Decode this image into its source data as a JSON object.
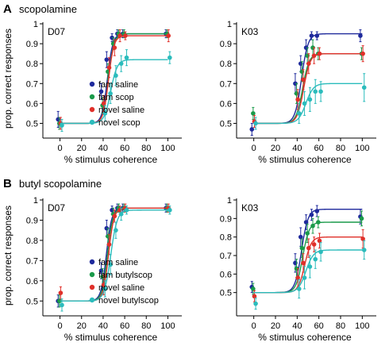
{
  "sections": [
    {
      "letter": "A",
      "label": "scopolamine"
    },
    {
      "letter": "B",
      "label": "butyl scopolamine"
    }
  ],
  "colors": {
    "fam_saline": "#1f2a9c",
    "fam_drug": "#1a9a4a",
    "novel_saline": "#e0302a",
    "novel_drug": "#2bbcbc"
  },
  "chart_data": [
    {
      "type": "scatter",
      "panel": "D07",
      "section": "A",
      "xlabel": "% stimulus coherence",
      "ylabel": "prop. correct responses",
      "xlim": [
        -10,
        110
      ],
      "ylim": [
        0.45,
        1.0
      ],
      "xticks": [
        "0",
        "20",
        "40",
        "60",
        "80",
        "100"
      ],
      "yticks": [
        "0.5",
        "0.6",
        "0.7",
        "0.8",
        "0.9",
        "1"
      ],
      "legend_position": "bottom-right",
      "series": [
        {
          "name": "fam saline",
          "color": "#1f2a9c",
          "mu": 44,
          "s": 2.5,
          "top": 0.95,
          "x": [
            0,
            40,
            45,
            50,
            55,
            60,
            100
          ],
          "y": [
            0.52,
            0.66,
            0.82,
            0.93,
            0.95,
            0.95,
            0.95
          ],
          "err": [
            0.04,
            0.04,
            0.04,
            0.02,
            0.02,
            0.02,
            0.02
          ]
        },
        {
          "name": "fam scop",
          "color": "#1a9a4a",
          "mu": 45,
          "s": 2.5,
          "top": 0.95,
          "x": [
            0,
            40,
            45,
            50,
            55,
            60,
            100
          ],
          "y": [
            0.5,
            0.59,
            0.76,
            0.9,
            0.95,
            0.95,
            0.95
          ],
          "err": [
            0.03,
            0.04,
            0.04,
            0.03,
            0.02,
            0.02,
            0.02
          ]
        },
        {
          "name": "novel saline",
          "color": "#e0302a",
          "mu": 45,
          "s": 2.5,
          "top": 0.94,
          "x": [
            0,
            40,
            45,
            50,
            55,
            60,
            100
          ],
          "y": [
            0.5,
            0.6,
            0.78,
            0.88,
            0.94,
            0.94,
            0.94
          ],
          "err": [
            0.03,
            0.04,
            0.05,
            0.04,
            0.03,
            0.02,
            0.03
          ]
        },
        {
          "name": "novel scop",
          "color": "#2bbcbc",
          "mu": 47,
          "s": 3,
          "top": 0.82,
          "x": [
            0,
            40,
            45,
            50,
            55,
            60,
            100
          ],
          "y": [
            0.49,
            0.55,
            0.65,
            0.74,
            0.8,
            0.83,
            0.83
          ],
          "err": [
            0.03,
            0.04,
            0.05,
            0.05,
            0.04,
            0.04,
            0.03
          ]
        }
      ]
    },
    {
      "type": "scatter",
      "panel": "K03",
      "section": "A",
      "xlabel": "% stimulus coherence",
      "ylabel": "",
      "xlim": [
        -10,
        110
      ],
      "ylim": [
        0.45,
        1.0
      ],
      "xticks": [
        "0",
        "20",
        "40",
        "60",
        "80",
        "100"
      ],
      "yticks": [
        "0.5",
        "0.6",
        "0.7",
        "0.8",
        "0.9",
        "1"
      ],
      "legend_position": "",
      "series": [
        {
          "name": "fam saline",
          "color": "#1f2a9c",
          "mu": 44,
          "s": 3,
          "top": 0.95,
          "x": [
            0,
            40,
            45,
            50,
            55,
            60,
            100
          ],
          "y": [
            0.47,
            0.7,
            0.8,
            0.88,
            0.94,
            0.94,
            0.94
          ],
          "err": [
            0.03,
            0.05,
            0.04,
            0.04,
            0.02,
            0.02,
            0.03
          ]
        },
        {
          "name": "fam scop",
          "color": "#1a9a4a",
          "mu": 45,
          "s": 3,
          "top": 0.85,
          "x": [
            0,
            40,
            45,
            50,
            55,
            60,
            100
          ],
          "y": [
            0.55,
            0.65,
            0.76,
            0.84,
            0.88,
            0.85,
            0.85
          ],
          "err": [
            0.03,
            0.05,
            0.05,
            0.04,
            0.04,
            0.03,
            0.03
          ]
        },
        {
          "name": "novel saline",
          "color": "#e0302a",
          "mu": 46,
          "s": 3,
          "top": 0.85,
          "x": [
            0,
            40,
            45,
            50,
            55,
            60,
            100
          ],
          "y": [
            0.51,
            0.62,
            0.72,
            0.8,
            0.84,
            0.85,
            0.85
          ],
          "err": [
            0.03,
            0.05,
            0.05,
            0.05,
            0.04,
            0.03,
            0.04
          ]
        },
        {
          "name": "novel scop",
          "color": "#2bbcbc",
          "mu": 48,
          "s": 3.5,
          "top": 0.7,
          "x": [
            0,
            40,
            45,
            50,
            55,
            60,
            100
          ],
          "y": [
            0.5,
            0.55,
            0.6,
            0.62,
            0.66,
            0.66,
            0.68
          ],
          "err": [
            0.03,
            0.05,
            0.06,
            0.06,
            0.06,
            0.05,
            0.07
          ]
        }
      ]
    },
    {
      "type": "scatter",
      "panel": "D07",
      "section": "B",
      "xlabel": "% stimulus coherence",
      "ylabel": "prop. correct responses",
      "xlim": [
        -10,
        110
      ],
      "ylim": [
        0.45,
        1.0
      ],
      "xticks": [
        "0",
        "20",
        "40",
        "60",
        "80",
        "100"
      ],
      "yticks": [
        "0.5",
        "0.6",
        "0.7",
        "0.8",
        "0.9",
        "1"
      ],
      "legend_position": "bottom-right",
      "series": [
        {
          "name": "fam saline",
          "color": "#1f2a9c",
          "mu": 43,
          "s": 2.5,
          "top": 0.96,
          "x": [
            0,
            40,
            45,
            50,
            55,
            60,
            100
          ],
          "y": [
            0.5,
            0.65,
            0.86,
            0.95,
            0.96,
            0.96,
            0.96
          ],
          "err": [
            0.03,
            0.04,
            0.04,
            0.02,
            0.02,
            0.02,
            0.02
          ]
        },
        {
          "name": "fam butylscop",
          "color": "#1a9a4a",
          "mu": 44,
          "s": 2.5,
          "top": 0.96,
          "x": [
            0,
            40,
            45,
            50,
            55,
            60,
            100
          ],
          "y": [
            0.5,
            0.62,
            0.82,
            0.93,
            0.96,
            0.96,
            0.96
          ],
          "err": [
            0.03,
            0.04,
            0.04,
            0.03,
            0.02,
            0.02,
            0.02
          ]
        },
        {
          "name": "novel saline",
          "color": "#e0302a",
          "mu": 45,
          "s": 2.5,
          "top": 0.96,
          "x": [
            0,
            40,
            45,
            50,
            55,
            60,
            100
          ],
          "y": [
            0.54,
            0.58,
            0.78,
            0.92,
            0.95,
            0.96,
            0.96
          ],
          "err": [
            0.03,
            0.05,
            0.05,
            0.03,
            0.02,
            0.02,
            0.02
          ]
        },
        {
          "name": "novel butylscop",
          "color": "#2bbcbc",
          "mu": 47,
          "s": 3,
          "top": 0.95,
          "x": [
            0,
            40,
            45,
            50,
            55,
            60,
            100
          ],
          "y": [
            0.48,
            0.56,
            0.68,
            0.85,
            0.93,
            0.95,
            0.95
          ],
          "err": [
            0.03,
            0.04,
            0.05,
            0.04,
            0.03,
            0.02,
            0.02
          ]
        }
      ]
    },
    {
      "type": "scatter",
      "panel": "K03",
      "section": "B",
      "xlabel": "% stimulus coherence",
      "ylabel": "",
      "xlim": [
        -10,
        110
      ],
      "ylim": [
        0.4,
        1.0
      ],
      "xticks": [
        "0",
        "20",
        "40",
        "60",
        "80",
        "100"
      ],
      "yticks": [
        "0.5",
        "0.6",
        "0.7",
        "0.8",
        "0.9",
        "1"
      ],
      "legend_position": "",
      "series": [
        {
          "name": "fam saline",
          "color": "#1f2a9c",
          "mu": 44,
          "s": 3,
          "top": 0.95,
          "x": [
            0,
            40,
            45,
            50,
            55,
            60,
            100
          ],
          "y": [
            0.53,
            0.66,
            0.8,
            0.88,
            0.92,
            0.94,
            0.91
          ],
          "err": [
            0.03,
            0.05,
            0.05,
            0.04,
            0.03,
            0.03,
            0.04
          ]
        },
        {
          "name": "fam butylscop",
          "color": "#1a9a4a",
          "mu": 45,
          "s": 3,
          "top": 0.88,
          "x": [
            0,
            40,
            45,
            50,
            55,
            60,
            100
          ],
          "y": [
            0.52,
            0.63,
            0.74,
            0.82,
            0.86,
            0.88,
            0.9
          ],
          "err": [
            0.03,
            0.05,
            0.05,
            0.05,
            0.04,
            0.03,
            0.04
          ]
        },
        {
          "name": "novel saline",
          "color": "#e0302a",
          "mu": 47,
          "s": 3,
          "top": 0.8,
          "x": [
            0,
            40,
            45,
            50,
            55,
            60,
            100
          ],
          "y": [
            0.48,
            0.58,
            0.66,
            0.74,
            0.76,
            0.78,
            0.79
          ],
          "err": [
            0.03,
            0.05,
            0.05,
            0.05,
            0.04,
            0.04,
            0.05
          ]
        },
        {
          "name": "novel butylscop",
          "color": "#2bbcbc",
          "mu": 48,
          "s": 3.5,
          "top": 0.73,
          "x": [
            0,
            40,
            45,
            50,
            55,
            60,
            100
          ],
          "y": [
            0.44,
            0.52,
            0.58,
            0.64,
            0.68,
            0.72,
            0.73
          ],
          "err": [
            0.03,
            0.05,
            0.06,
            0.06,
            0.05,
            0.05,
            0.05
          ]
        }
      ]
    }
  ]
}
